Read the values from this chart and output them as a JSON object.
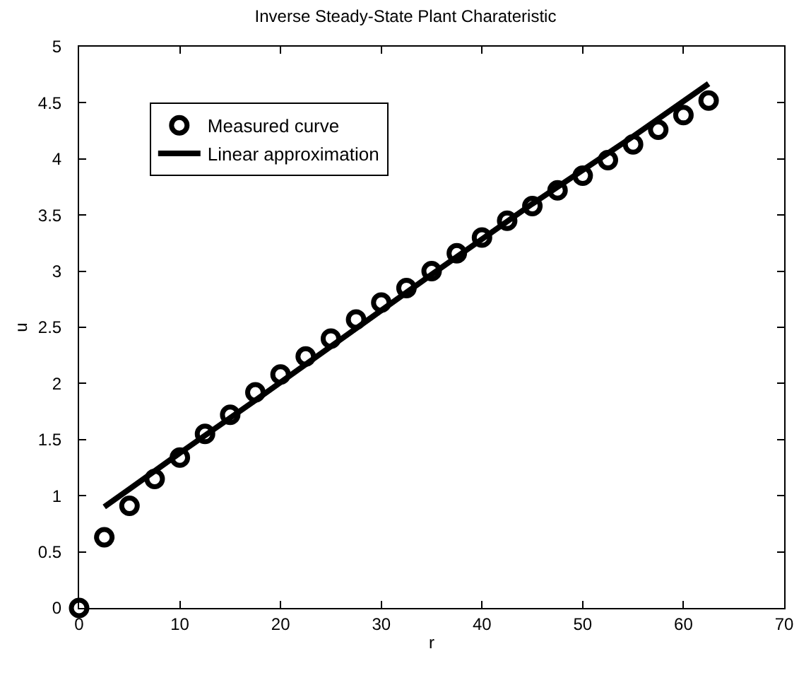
{
  "chart_data": {
    "type": "scatter",
    "title": "Inverse Steady-State Plant Charateristic",
    "xlabel": "r",
    "ylabel": "u",
    "xlim": [
      0,
      70
    ],
    "xticks": [
      0,
      10,
      20,
      30,
      40,
      50,
      60,
      70
    ],
    "ylim": [
      0,
      5
    ],
    "yticks": [
      0,
      0.5,
      1,
      1.5,
      2,
      2.5,
      3,
      3.5,
      4,
      4.5,
      5
    ],
    "legend": "top left",
    "series": [
      {
        "name": "Measured curve",
        "color": "#000000",
        "marker": "circle",
        "x": [
          0,
          2.5,
          5,
          7.5,
          10,
          12.5,
          15,
          17.5,
          20,
          22.5,
          25,
          27.5,
          30,
          32.5,
          35,
          37.5,
          40,
          42.5,
          45,
          47.5,
          50,
          52.5,
          55,
          57.5,
          60,
          62.5
        ],
        "values": [
          0,
          0.63,
          0.91,
          1.15,
          1.34,
          1.55,
          1.72,
          1.92,
          2.08,
          2.24,
          2.4,
          2.57,
          2.72,
          2.85,
          3.0,
          3.16,
          3.3,
          3.45,
          3.58,
          3.72,
          3.85,
          3.99,
          4.13,
          4.26,
          4.39,
          4.52
        ]
      },
      {
        "name": "Linear approximation",
        "color": "#000000",
        "type": "line",
        "marker": "none",
        "line_style": "solid",
        "x": [
          2.5,
          5,
          10,
          17.5,
          25,
          35,
          45,
          55,
          62.5
        ],
        "values": [
          0.9,
          1.06,
          1.38,
          1.85,
          2.33,
          2.97,
          3.6,
          4.2,
          4.67
        ]
      }
    ]
  }
}
